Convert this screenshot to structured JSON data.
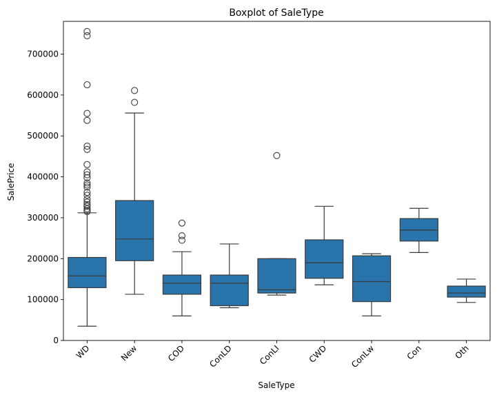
{
  "chart_data": {
    "type": "box",
    "title": "Boxplot of SaleType",
    "xlabel": "SaleType",
    "ylabel": "SalePrice",
    "ylim": [
      0,
      780000
    ],
    "yticks": [
      0,
      100000,
      200000,
      300000,
      400000,
      500000,
      600000,
      700000
    ],
    "ytick_labels": [
      "0",
      "100000",
      "200000",
      "300000",
      "400000",
      "500000",
      "600000",
      "700000"
    ],
    "grid": false,
    "box_color": "#2a74ac",
    "line_color": "#3a3a3a",
    "categories": [
      "WD",
      "New",
      "COD",
      "ConLD",
      "ConLI",
      "CWD",
      "ConLw",
      "Con",
      "Oth"
    ],
    "boxes": [
      {
        "category": "WD",
        "whisker_low": 35000,
        "q1": 129000,
        "median": 158000,
        "q3": 203000,
        "whisker_high": 312000,
        "outliers": [
          755000,
          745000,
          625000,
          555000,
          538000,
          475000,
          467000,
          430000,
          412000,
          405000,
          398000,
          385000,
          380000,
          375000,
          362000,
          355000,
          345000,
          338000,
          332000,
          328000,
          322000,
          318000,
          315000
        ]
      },
      {
        "category": "New",
        "whisker_low": 113000,
        "q1": 195000,
        "median": 248000,
        "q3": 342000,
        "whisker_high": 556000,
        "outliers": [
          611000,
          582000
        ]
      },
      {
        "category": "COD",
        "whisker_low": 60000,
        "q1": 113000,
        "median": 140000,
        "q3": 160000,
        "whisker_high": 217000,
        "outliers": [
          287000,
          256000,
          245000
        ]
      },
      {
        "category": "ConLD",
        "whisker_low": 80000,
        "q1": 85000,
        "median": 140000,
        "q3": 160000,
        "whisker_high": 236000,
        "outliers": []
      },
      {
        "category": "ConLI",
        "whisker_low": 111000,
        "q1": 116000,
        "median": 124000,
        "q3": 200000,
        "whisker_high": 200000,
        "outliers": [
          452000
        ]
      },
      {
        "category": "CWD",
        "whisker_low": 136000,
        "q1": 152000,
        "median": 190000,
        "q3": 246000,
        "whisker_high": 328000,
        "outliers": []
      },
      {
        "category": "ConLw",
        "whisker_low": 60000,
        "q1": 95000,
        "median": 144000,
        "q3": 207000,
        "whisker_high": 212000,
        "outliers": []
      },
      {
        "category": "Con",
        "whisker_low": 215000,
        "q1": 243000,
        "median": 270000,
        "q3": 298000,
        "whisker_high": 323000,
        "outliers": []
      },
      {
        "category": "Oth",
        "whisker_low": 93000,
        "q1": 106000,
        "median": 116000,
        "q3": 133000,
        "whisker_high": 150000,
        "outliers": []
      }
    ]
  }
}
